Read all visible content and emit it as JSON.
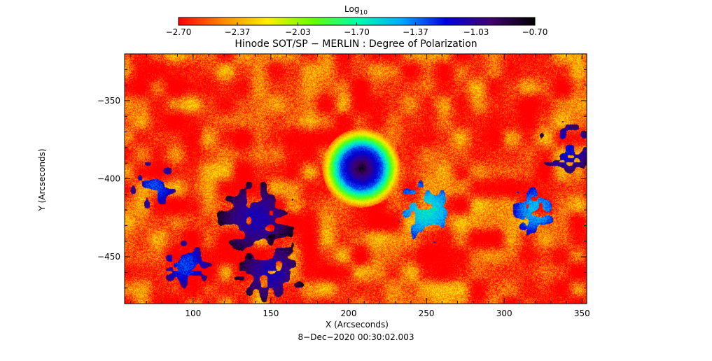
{
  "chart_data": {
    "type": "heatmap",
    "title": "Hinode SOT/SP − MERLIN : Degree of Polarization",
    "xlabel": "X (Arcseconds)",
    "ylabel": "Y (Arcseconds)",
    "xlim": [
      56,
      353
    ],
    "ylim": [
      -480,
      -320
    ],
    "xticks": [
      100,
      150,
      200,
      250,
      300,
      350
    ],
    "yticks": [
      -350,
      -400,
      -450
    ],
    "xtick_labels": [
      "100",
      "150",
      "200",
      "250",
      "300",
      "350"
    ],
    "ytick_labels": [
      "−350",
      "−400",
      "−450"
    ],
    "timestamp": "8−Dec−2020 00:30:02.003",
    "colorbar": {
      "title_base": "Log",
      "title_sub": "10",
      "range": [
        -2.7,
        -0.7
      ],
      "colormap": "rainbow-reversed",
      "stops": [
        "#ff0000",
        "#ff8800",
        "#ffee00",
        "#66ff00",
        "#00ffaa",
        "#00aaff",
        "#0000dd",
        "#400070",
        "#000000"
      ],
      "ticks": [
        -2.7,
        -2.37,
        -2.03,
        -1.7,
        -1.37,
        -1.03,
        -0.7
      ],
      "tick_labels": [
        "−2.70",
        "−2.37",
        "−2.03",
        "−1.70",
        "−1.37",
        "−1.03",
        "−0.70"
      ]
    },
    "features": [
      {
        "kind": "sunspot",
        "x": 208,
        "y": -393,
        "radius": 14,
        "peak": -0.75
      },
      {
        "kind": "plage",
        "x": 140,
        "y": -425,
        "spread": 20,
        "peak": -1.1
      },
      {
        "kind": "plage",
        "x": 150,
        "y": -460,
        "spread": 18,
        "peak": -1.1
      },
      {
        "kind": "plage",
        "x": 95,
        "y": -455,
        "spread": 12,
        "peak": -1.3
      },
      {
        "kind": "plage",
        "x": 75,
        "y": -405,
        "spread": 12,
        "peak": -1.3
      },
      {
        "kind": "plage",
        "x": 340,
        "y": -380,
        "spread": 14,
        "peak": -1.2
      },
      {
        "kind": "plage",
        "x": 250,
        "y": -420,
        "spread": 15,
        "peak": -1.6
      },
      {
        "kind": "plage",
        "x": 320,
        "y": -420,
        "spread": 12,
        "peak": -1.5
      }
    ],
    "background_level": -2.6
  }
}
